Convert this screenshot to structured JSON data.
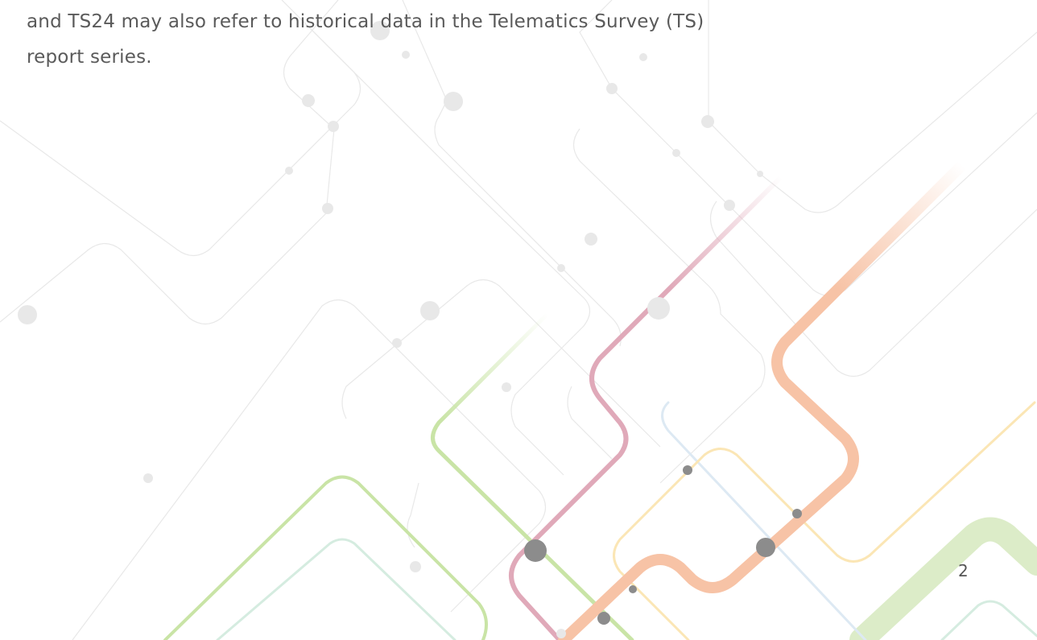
{
  "body": {
    "lines": [
      "and TS24 may also refer to historical data in the Telematics Survey (TS)",
      "report series."
    ]
  },
  "page_number": "2"
}
